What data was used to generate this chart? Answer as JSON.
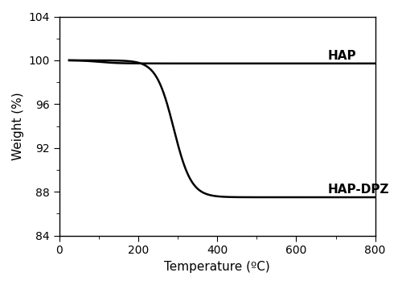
{
  "title": "",
  "xlabel": "Temperature (ºC)",
  "ylabel": "Weight (%)",
  "xlim": [
    0,
    800
  ],
  "ylim": [
    84,
    104
  ],
  "xticks": [
    0,
    200,
    400,
    600,
    800
  ],
  "yticks": [
    84,
    88,
    92,
    96,
    100,
    104
  ],
  "hap_label": "HAP",
  "hap_dpz_label": "HAP-DPZ",
  "hap_start": 100.0,
  "hap_end": 100.0,
  "hap_dpz_start": 100.0,
  "hap_dpz_end": 87.5,
  "hap_dpz_midpoint": 290,
  "hap_dpz_steepness": 0.045,
  "line_color": "#000000",
  "line_width": 1.8,
  "background_color": "#ffffff",
  "label_fontsize": 11,
  "tick_fontsize": 10,
  "annotation_fontsize": 11
}
